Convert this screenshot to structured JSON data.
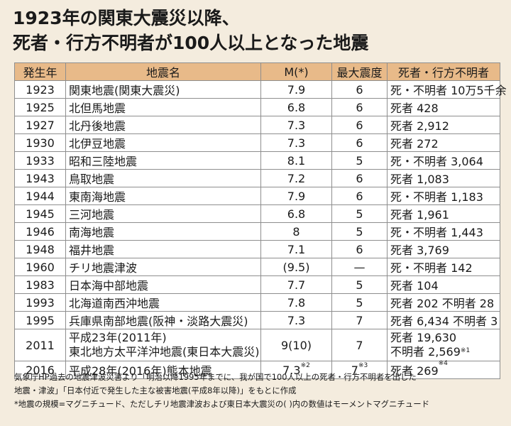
{
  "title": {
    "line1": "1923年の関東大震災以降、",
    "line2": "死者・行方不明者が100人以上となった地震"
  },
  "table": {
    "headers": [
      "発生年",
      "地震名",
      "M(*)",
      "最大震度",
      "死者・行方不明者"
    ],
    "rows": [
      {
        "year": "1923",
        "name": "関東地震(関東大震災)",
        "m": "7.9",
        "intensity": "6",
        "casualties": "死・不明者 10万5千余"
      },
      {
        "year": "1925",
        "name": "北但馬地震",
        "m": "6.8",
        "intensity": "6",
        "casualties": "死者 428"
      },
      {
        "year": "1927",
        "name": "北丹後地震",
        "m": "7.3",
        "intensity": "6",
        "casualties": "死者 2,912"
      },
      {
        "year": "1930",
        "name": "北伊豆地震",
        "m": "7.3",
        "intensity": "6",
        "casualties": "死者 272"
      },
      {
        "year": "1933",
        "name": "昭和三陸地震",
        "m": "8.1",
        "intensity": "5",
        "casualties": "死・不明者 3,064"
      },
      {
        "year": "1943",
        "name": "鳥取地震",
        "m": "7.2",
        "intensity": "6",
        "casualties": "死者 1,083"
      },
      {
        "year": "1944",
        "name": "東南海地震",
        "m": "7.9",
        "intensity": "6",
        "casualties": "死・不明者 1,183"
      },
      {
        "year": "1945",
        "name": "三河地震",
        "m": "6.8",
        "intensity": "5",
        "casualties": "死者 1,961"
      },
      {
        "year": "1946",
        "name": "南海地震",
        "m": "8",
        "intensity": "5",
        "casualties": "死・不明者 1,443"
      },
      {
        "year": "1948",
        "name": "福井地震",
        "m": "7.1",
        "intensity": "6",
        "casualties": "死者 3,769"
      },
      {
        "year": "1960",
        "name": "チリ地震津波",
        "m": "(9.5)",
        "intensity": "—",
        "casualties": "死・不明者 142"
      },
      {
        "year": "1983",
        "name": "日本海中部地震",
        "m": "7.7",
        "intensity": "5",
        "casualties": "死者 104"
      },
      {
        "year": "1993",
        "name": "北海道南西沖地震",
        "m": "7.8",
        "intensity": "5",
        "casualties": "死者 202 不明者 28"
      },
      {
        "year": "1995",
        "name": "兵庫県南部地震(阪神・淡路大震災)",
        "m": "7.3",
        "intensity": "7",
        "casualties": "死者 6,434 不明者 3"
      }
    ],
    "row2011": {
      "year": "2011",
      "name_line1": "平成23年(2011年)",
      "name_line2": "東北地方太平洋沖地震(東日本大震災)",
      "m": "9(10)",
      "intensity": "7",
      "casualties_line1": "死者 19,630",
      "casualties_line2": "不明者 2,569",
      "casualties_note": "※1"
    },
    "row2016": {
      "year": "2016",
      "name": "平成28年(2016年)熊本地震",
      "m": "7.3",
      "m_note": "※2",
      "intensity": "7",
      "intensity_note": "※3",
      "casualties": "死者 269",
      "casualties_note": "※4"
    }
  },
  "notes": {
    "line1": "気象庁HP過去の地震津波災害より「明治以降1995年までに、我が国で100人以上の死者・行方不明者を出した",
    "line2": "地震・津波」「日本付近で発生した主な被害地震(平成8年以降)」をもとに作成",
    "line3": "*地震の規模=マグニチュード、ただしチリ地震津波および東日本大震災の( )内の数値はモーメントマグニチュード"
  }
}
